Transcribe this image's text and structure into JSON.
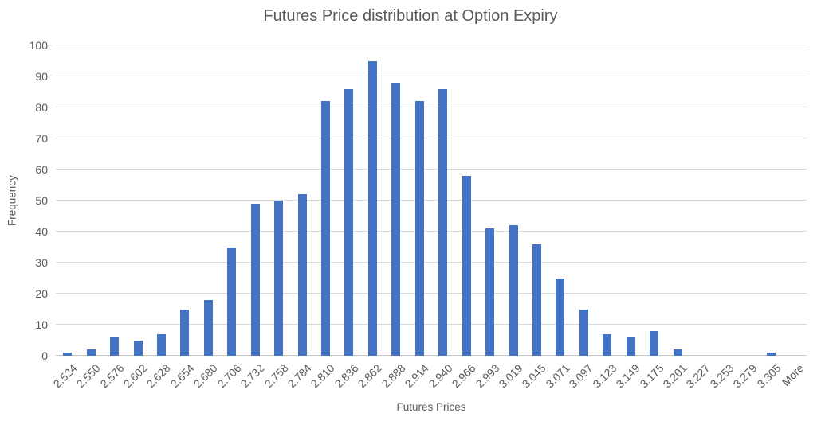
{
  "chart_data": {
    "type": "bar",
    "title": "Futures Price distribution at Option Expiry",
    "xlabel": "Futures Prices",
    "ylabel": "Frequency",
    "categories": [
      "2.524",
      "2.550",
      "2.576",
      "2.602",
      "2.628",
      "2.654",
      "2.680",
      "2.706",
      "2.732",
      "2.758",
      "2.784",
      "2.810",
      "2.836",
      "2.862",
      "2.888",
      "2.914",
      "2.940",
      "2.966",
      "2.993",
      "3.019",
      "3.045",
      "3.071",
      "3.097",
      "3.123",
      "3.149",
      "3.175",
      "3.201",
      "3.227",
      "3.253",
      "3.279",
      "3.305",
      "More"
    ],
    "values": [
      1,
      2,
      6,
      5,
      7,
      15,
      18,
      35,
      49,
      50,
      52,
      82,
      86,
      95,
      88,
      82,
      86,
      58,
      41,
      42,
      36,
      25,
      15,
      7,
      6,
      8,
      2,
      0,
      0,
      0,
      1,
      0
    ],
    "ylim": [
      0,
      100
    ],
    "yticks": [
      0,
      10,
      20,
      30,
      40,
      50,
      60,
      70,
      80,
      90,
      100
    ],
    "grid": true,
    "legend": false,
    "colors": {
      "bar": "#4472C4",
      "gridline": "#D9D9D9",
      "axis_line": "#C9C9C9",
      "text": "#595959",
      "background": "#FFFFFF"
    }
  }
}
